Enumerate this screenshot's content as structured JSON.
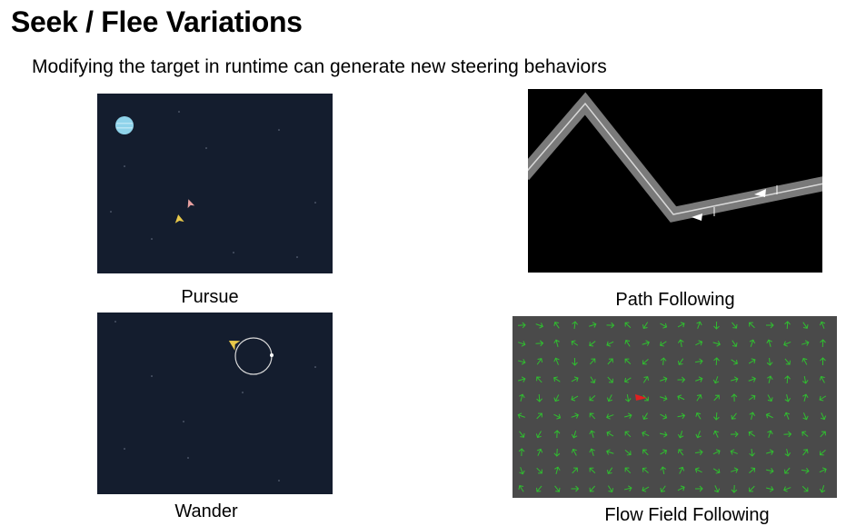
{
  "slide": {
    "title": "Seek / Flee Variations",
    "subtitle": "Modifying the target in runtime can generate new steering behaviors"
  },
  "panels": [
    {
      "id": "pursue",
      "caption": "Pursue"
    },
    {
      "id": "path",
      "caption": "Path Following"
    },
    {
      "id": "wander",
      "caption": "Wander"
    },
    {
      "id": "flow",
      "caption": "Flow Field Following"
    }
  ],
  "colors": {
    "space_bg": "#141d2e",
    "path_bg": "#000000",
    "path_track": "#7a7a7a",
    "flow_bg": "#4a4a4a",
    "flow_arrow": "#2fbf2f",
    "flow_agent": "#e02020",
    "planet": "#8fd3ea",
    "ship": "#e8c84a"
  },
  "icons": [
    "planet-icon",
    "ship-icon",
    "arrow-agent-icon",
    "wander-circle-icon",
    "flow-arrow-icon"
  ]
}
